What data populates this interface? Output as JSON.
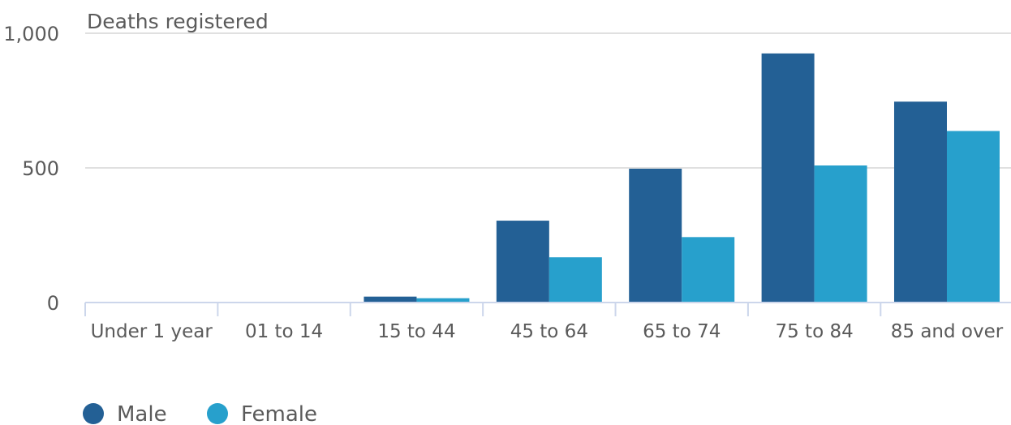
{
  "chart_data": {
    "type": "bar",
    "ylabel": "Deaths registered",
    "ylim": [
      0,
      1000
    ],
    "yticks": [
      "0",
      "500",
      "1,000"
    ],
    "ytick_values": [
      0,
      500,
      1000
    ],
    "categories": [
      "Under 1 year",
      "01 to 14",
      "15 to 44",
      "45 to 64",
      "65 to 74",
      "75 to 84",
      "85 and over"
    ],
    "series": [
      {
        "name": "Male",
        "color": "#236095",
        "values": [
          0,
          0,
          22,
          304,
          497,
          925,
          746
        ]
      },
      {
        "name": "Female",
        "color": "#27a0cc",
        "values": [
          0,
          0,
          16,
          168,
          243,
          509,
          637
        ]
      }
    ],
    "grid": true,
    "legend": "bottom-left"
  }
}
